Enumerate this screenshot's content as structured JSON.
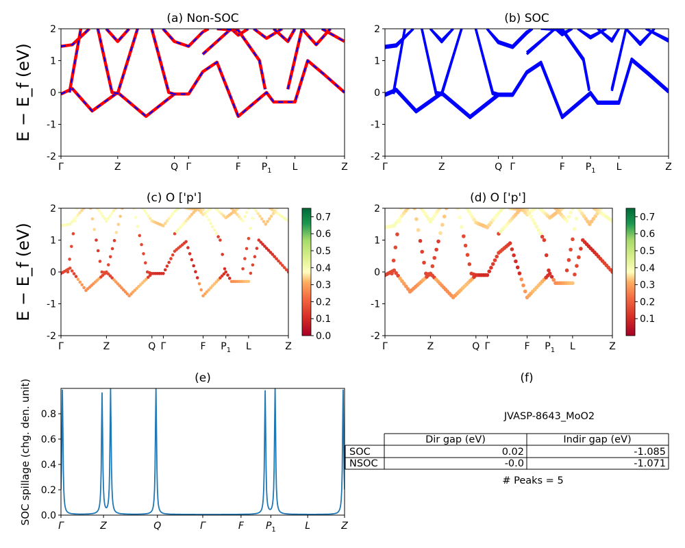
{
  "figure": {
    "background": "#ffffff",
    "ylabel_bands": "E − E_f (eV)",
    "ylabel_spillage": "SOC spillage (chg. den. unit)"
  },
  "kpath": {
    "labels": [
      "Γ",
      "Z",
      "Q",
      "Γ",
      "F",
      "P1",
      "L",
      "Z"
    ],
    "positions_bands": [
      0,
      0.2,
      0.4,
      0.45,
      0.625,
      0.725,
      0.825,
      1.0
    ],
    "spillage_labels": [
      "Γ",
      "Z",
      "Q",
      "Γ",
      "F",
      "P1",
      "L",
      "Z"
    ],
    "spillage_positions": [
      0,
      0.15,
      0.34,
      0.5,
      0.635,
      0.74,
      0.87,
      1.0
    ]
  },
  "colors": {
    "nonsoc_red": "#ff0000",
    "nonsoc_blue": "#0000ff",
    "soc_blue": "#0000ff",
    "spillage_line": "#1f77b4"
  },
  "chart_data": [
    {
      "id": "a",
      "type": "line",
      "title": "(a) Non-SOC",
      "xlabel": "",
      "ylabel": "E − E_f (eV)",
      "ylim": [
        -2,
        2
      ],
      "yticks": [
        -2,
        -1,
        0,
        1,
        2
      ],
      "note": "red solid bands with blue dashed overlay",
      "series": [
        {
          "points": [
            [
              0,
              -0.05
            ],
            [
              0.04,
              0.12
            ],
            [
              0.11,
              -0.58
            ],
            [
              0.2,
              0
            ],
            [
              0.3,
              -0.75
            ],
            [
              0.4,
              -0.05
            ],
            [
              0.45,
              -0.05
            ],
            [
              0.5,
              0.65
            ],
            [
              0.55,
              0.95
            ],
            [
              0.625,
              -0.75
            ],
            [
              0.725,
              0
            ],
            [
              0.75,
              -0.3
            ],
            [
              0.825,
              -0.3
            ],
            [
              0.87,
              1.0
            ],
            [
              0.93,
              0.55
            ],
            [
              1.0,
              0
            ]
          ]
        },
        {
          "points": [
            [
              0,
              1.45
            ],
            [
              0.04,
              1.5
            ],
            [
              0.1,
              2.0
            ]
          ]
        },
        {
          "points": [
            [
              0.16,
              2.0
            ],
            [
              0.2,
              1.6
            ],
            [
              0.24,
              2.0
            ]
          ]
        },
        {
          "points": [
            [
              0.36,
              2.0
            ],
            [
              0.4,
              1.6
            ],
            [
              0.45,
              1.45
            ],
            [
              0.5,
              1.9
            ],
            [
              0.52,
              2.0
            ]
          ]
        },
        {
          "points": [
            [
              0.03,
              0.0
            ],
            [
              0.07,
              2.0
            ]
          ]
        },
        {
          "points": [
            [
              0.13,
              2.0
            ],
            [
              0.18,
              0.0
            ],
            [
              0.2,
              -0.03
            ],
            [
              0.27,
              2.0
            ]
          ]
        },
        {
          "points": [
            [
              0.32,
              2.0
            ],
            [
              0.38,
              0.0
            ],
            [
              0.4,
              -0.05
            ]
          ]
        },
        {
          "points": [
            [
              0.5,
              1.2
            ],
            [
              0.6,
              2.0
            ],
            [
              0.625,
              1.8
            ],
            [
              0.66,
              2.0
            ]
          ]
        },
        {
          "points": [
            [
              0.55,
              2.0
            ],
            [
              0.625,
              1.95
            ],
            [
              0.7,
              1.0
            ],
            [
              0.72,
              0.1
            ]
          ]
        },
        {
          "points": [
            [
              0.68,
              2.0
            ],
            [
              0.725,
              1.7
            ],
            [
              0.78,
              2.0
            ]
          ]
        },
        {
          "points": [
            [
              0.75,
              2.0
            ],
            [
              0.8,
              1.6
            ],
            [
              0.825,
              2.0
            ]
          ]
        },
        {
          "points": [
            [
              0.8,
              0.1
            ],
            [
              0.85,
              2.0
            ]
          ]
        },
        {
          "points": [
            [
              0.85,
              2.0
            ],
            [
              0.9,
              1.5
            ],
            [
              0.95,
              2.0
            ]
          ]
        },
        {
          "points": [
            [
              0.92,
              2.0
            ],
            [
              1.0,
              1.6
            ]
          ]
        }
      ]
    },
    {
      "id": "b",
      "type": "line",
      "title": "(b) SOC",
      "xlabel": "",
      "ylabel": "",
      "ylim": [
        -2,
        2
      ],
      "yticks": [
        -2,
        -1,
        0,
        1,
        2
      ],
      "note": "thick blue split bands",
      "series": [
        {
          "points": [
            [
              0,
              -0.1
            ],
            [
              0.04,
              0.05
            ],
            [
              0.11,
              -0.62
            ],
            [
              0.2,
              -0.05
            ],
            [
              0.3,
              -0.8
            ],
            [
              0.4,
              -0.1
            ],
            [
              0.45,
              -0.1
            ],
            [
              0.5,
              0.6
            ],
            [
              0.55,
              0.9
            ],
            [
              0.625,
              -0.8
            ],
            [
              0.725,
              -0.05
            ],
            [
              0.75,
              -0.35
            ],
            [
              0.825,
              -0.35
            ],
            [
              0.87,
              1.0
            ],
            [
              0.93,
              0.55
            ],
            [
              1.0,
              0
            ]
          ]
        },
        {
          "points": [
            [
              0,
              1.4
            ],
            [
              0.04,
              1.45
            ],
            [
              0.1,
              2.0
            ]
          ]
        },
        {
          "points": [
            [
              0.16,
              2.0
            ],
            [
              0.2,
              1.58
            ],
            [
              0.24,
              2.0
            ]
          ]
        },
        {
          "points": [
            [
              0.36,
              2.0
            ],
            [
              0.4,
              1.55
            ],
            [
              0.45,
              1.4
            ],
            [
              0.5,
              1.85
            ],
            [
              0.52,
              2.0
            ]
          ]
        },
        {
          "points": [
            [
              0.03,
              -0.05
            ],
            [
              0.07,
              2.0
            ]
          ]
        },
        {
          "points": [
            [
              0.13,
              2.0
            ],
            [
              0.18,
              -0.05
            ],
            [
              0.2,
              -0.08
            ],
            [
              0.27,
              2.0
            ]
          ]
        },
        {
          "points": [
            [
              0.32,
              2.0
            ],
            [
              0.38,
              -0.05
            ],
            [
              0.4,
              -0.1
            ]
          ]
        },
        {
          "points": [
            [
              0.5,
              1.2
            ],
            [
              0.6,
              2.0
            ],
            [
              0.625,
              1.8
            ],
            [
              0.66,
              2.0
            ]
          ]
        },
        {
          "points": [
            [
              0.55,
              2.0
            ],
            [
              0.625,
              1.95
            ],
            [
              0.7,
              1.0
            ],
            [
              0.72,
              0.05
            ]
          ]
        },
        {
          "points": [
            [
              0.68,
              2.0
            ],
            [
              0.725,
              1.7
            ],
            [
              0.78,
              2.0
            ]
          ]
        },
        {
          "points": [
            [
              0.75,
              2.0
            ],
            [
              0.8,
              1.6
            ],
            [
              0.825,
              2.0
            ]
          ]
        },
        {
          "points": [
            [
              0.8,
              0.05
            ],
            [
              0.85,
              2.0
            ]
          ]
        },
        {
          "points": [
            [
              0.85,
              2.0
            ],
            [
              0.9,
              1.5
            ],
            [
              0.95,
              2.0
            ]
          ]
        },
        {
          "points": [
            [
              0.92,
              2.0
            ],
            [
              1.0,
              1.6
            ]
          ]
        }
      ]
    },
    {
      "id": "c",
      "type": "scatter",
      "title": "(c)  O ['p']",
      "ylim": [
        -2,
        2
      ],
      "yticks": [
        -2,
        -1,
        0,
        1,
        2
      ],
      "colorbar": {
        "min": 0.0,
        "max": 0.75,
        "ticks": [
          0.0,
          0.1,
          0.2,
          0.3,
          0.4,
          0.5,
          0.6,
          0.7
        ]
      },
      "note": "orbital-projected scatter, same bands as (a)"
    },
    {
      "id": "d",
      "type": "scatter",
      "title": "(d) O ['p']",
      "ylim": [
        -2,
        2
      ],
      "yticks": [
        -2,
        -1,
        0,
        1,
        2
      ],
      "colorbar": {
        "min": 0.0,
        "max": 0.75,
        "ticks": [
          0.1,
          0.2,
          0.3,
          0.4,
          0.5,
          0.6,
          0.7
        ]
      },
      "note": "orbital-projected scatter, same bands as (b)"
    },
    {
      "id": "e",
      "type": "line",
      "title": "(e)",
      "xlabel": "",
      "ylabel": "SOC spillage (chg. den. unit)",
      "ylim": [
        0,
        1.0
      ],
      "yticks": [
        0.0,
        0.2,
        0.4,
        0.6,
        0.8
      ],
      "peaks": [
        {
          "x": 0.005,
          "y": 0.99
        },
        {
          "x": 0.145,
          "y": 0.96
        },
        {
          "x": 0.175,
          "y": 1.0
        },
        {
          "x": 0.335,
          "y": 1.0
        },
        {
          "x": 0.72,
          "y": 0.98
        },
        {
          "x": 0.755,
          "y": 1.0
        },
        {
          "x": 0.995,
          "y": 0.99
        }
      ],
      "baseline": 0.005
    },
    {
      "id": "f",
      "type": "table",
      "title": "(f)",
      "subtitle": "JVASP-8643_MoO2",
      "columns": [
        "",
        "Dir gap (eV)",
        "Indir gap (eV)"
      ],
      "rows": [
        {
          "label": "SOC",
          "dir": "0.02",
          "indir": "-1.085"
        },
        {
          "label": "NSOC",
          "dir": "-0.0",
          "indir": "-1.071"
        }
      ],
      "footer": "# Peaks = 5"
    }
  ]
}
